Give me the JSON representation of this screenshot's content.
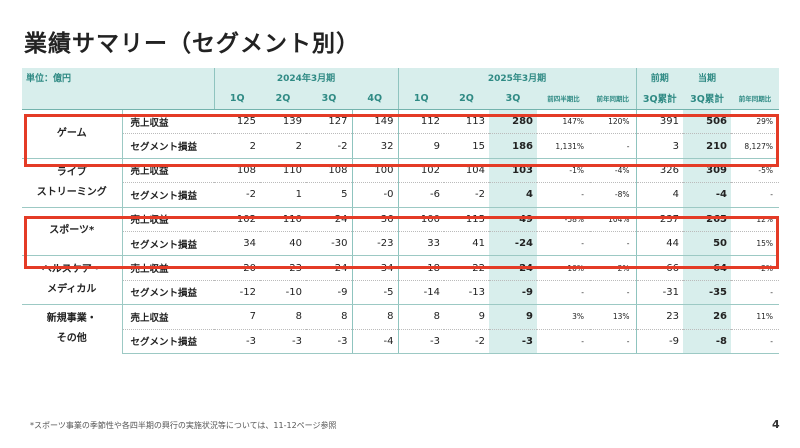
{
  "title": "業績サマリー（セグメント別）",
  "unit_label": "単位：億円",
  "header": {
    "fy2024": "2024年3月期",
    "fy2025": "2025年3月期",
    "prev": "前期",
    "curr": "当期",
    "cols": [
      "1Q",
      "2Q",
      "3Q",
      "4Q",
      "1Q",
      "2Q",
      "3Q",
      "前四半期比",
      "前年同期比",
      "3Q累計",
      "3Q累計",
      "前年同期比"
    ]
  },
  "segments": [
    {
      "name": "ゲーム",
      "rows": [
        {
          "metric": "売上収益",
          "v": [
            "125",
            "139",
            "127",
            "149",
            "112",
            "113",
            "280",
            "147%",
            "120%",
            "391",
            "506",
            "29%"
          ]
        },
        {
          "metric": "セグメント損益",
          "v": [
            "2",
            "2",
            "-2",
            "32",
            "9",
            "15",
            "186",
            "1,131%",
            "-",
            "3",
            "210",
            "8,127%"
          ]
        }
      ]
    },
    {
      "name": "ライブストリーミング",
      "rows": [
        {
          "metric": "売上収益",
          "v": [
            "108",
            "110",
            "108",
            "100",
            "102",
            "104",
            "103",
            "-1%",
            "-4%",
            "326",
            "309",
            "-5%"
          ]
        },
        {
          "metric": "セグメント損益",
          "v": [
            "-2",
            "1",
            "5",
            "-0",
            "-6",
            "-2",
            "4",
            "-",
            "-8%",
            "4",
            "-4",
            "-"
          ]
        }
      ]
    },
    {
      "name": "スポーツ*",
      "rows": [
        {
          "metric": "売上収益",
          "v": [
            "102",
            "110",
            "24",
            "36",
            "100",
            "115",
            "49",
            "-58%",
            "104%",
            "237",
            "265",
            "12%"
          ]
        },
        {
          "metric": "セグメント損益",
          "v": [
            "34",
            "40",
            "-30",
            "-23",
            "33",
            "41",
            "-24",
            "-",
            "-",
            "44",
            "50",
            "15%"
          ]
        }
      ]
    },
    {
      "name": "ヘルスケア・メディカル",
      "rows": [
        {
          "metric": "売上収益",
          "v": [
            "20",
            "23",
            "24",
            "34",
            "18",
            "22",
            "24",
            "10%",
            "2%",
            "66",
            "64",
            "-2%"
          ]
        },
        {
          "metric": "セグメント損益",
          "v": [
            "-12",
            "-10",
            "-9",
            "-5",
            "-14",
            "-13",
            "-9",
            "-",
            "-",
            "-31",
            "-35",
            "-"
          ]
        }
      ]
    },
    {
      "name": "新規事業・その他",
      "rows": [
        {
          "metric": "売上収益",
          "v": [
            "7",
            "8",
            "8",
            "8",
            "8",
            "9",
            "9",
            "3%",
            "13%",
            "23",
            "26",
            "11%"
          ]
        },
        {
          "metric": "セグメント損益",
          "v": [
            "-3",
            "-3",
            "-3",
            "-4",
            "-3",
            "-2",
            "-3",
            "-",
            "-",
            "-9",
            "-8",
            "-"
          ]
        }
      ]
    }
  ],
  "segment_display": [
    [
      "ゲーム"
    ],
    [
      "ライブ",
      "ストリーミング"
    ],
    [
      "スポーツ*"
    ],
    [
      "ヘルスケア・",
      "メディカル"
    ],
    [
      "新規事業・",
      "その他"
    ]
  ],
  "footnote": "*スポーツ事業の季節性や各四半期の興行の実施状況等については、11-12ページ参照",
  "page_number": "4",
  "colors": {
    "header_bg": "#d8eeec",
    "header_text": "#2f8a84",
    "highlight_bg": "#d8eeec",
    "red_box": "#e43b26"
  }
}
